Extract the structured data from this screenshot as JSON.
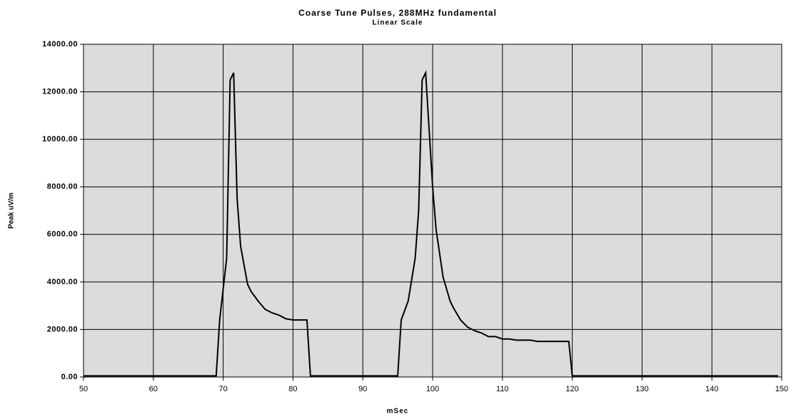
{
  "chart_data": {
    "type": "line",
    "title": "Coarse Tune Pulses,  288MHz fundamental",
    "subtitle": "Linear Scale",
    "x_label": "mSec",
    "y_label": "Peak uV/m",
    "x": [
      50,
      69,
      69.5,
      70.5,
      71,
      71.5,
      72,
      72.5,
      73,
      73.5,
      74,
      75,
      76,
      77,
      78,
      79,
      80,
      82,
      82.5,
      95,
      95.5,
      96.5,
      97.5,
      98,
      98.5,
      99,
      100,
      100.5,
      101.5,
      102.5,
      103,
      104,
      105,
      106,
      107,
      108,
      109,
      110,
      111,
      112,
      114,
      115,
      119.5,
      120,
      149.5
    ],
    "series": [
      {
        "name": "Peak uV/m",
        "color": "#000000",
        "values": [
          50,
          50,
          2400,
          5000,
          12500,
          12800,
          7500,
          5500,
          4700,
          3900,
          3600,
          3200,
          2850,
          2700,
          2600,
          2450,
          2400,
          2400,
          50,
          50,
          2400,
          3200,
          5000,
          7000,
          12500,
          12800,
          8000,
          6200,
          4200,
          3200,
          2900,
          2400,
          2100,
          1950,
          1850,
          1700,
          1700,
          1600,
          1600,
          1550,
          1550,
          1500,
          1500,
          50,
          50
        ]
      }
    ],
    "xlim": [
      50,
      150
    ],
    "xticks": [
      50,
      60,
      70,
      80,
      90,
      100,
      110,
      120,
      130,
      140,
      150
    ],
    "ylim": [
      0,
      14000
    ],
    "yticks": [
      {
        "value": 0,
        "label": "0.00"
      },
      {
        "value": 2000,
        "label": "2000.00"
      },
      {
        "value": 4000,
        "label": "4000.00"
      },
      {
        "value": 6000,
        "label": "6000.00"
      },
      {
        "value": 8000,
        "label": "8000.00"
      },
      {
        "value": 10000,
        "label": "10000.00"
      },
      {
        "value": 12000,
        "label": "12000.00"
      },
      {
        "value": 14000,
        "label": "14000.00"
      }
    ],
    "grid": true
  }
}
